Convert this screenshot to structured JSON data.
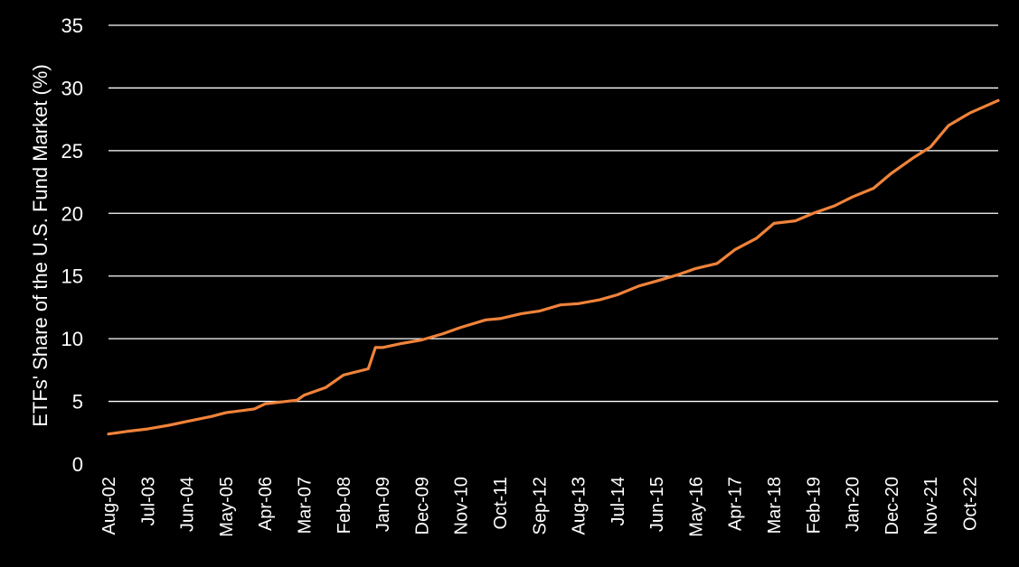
{
  "chart_data": {
    "type": "line",
    "title": "",
    "xlabel": "",
    "ylabel": "ETFs' Share of the U.S.  Fund Market (%)",
    "ylim": [
      0,
      35
    ],
    "yticks": [
      0,
      5,
      10,
      15,
      20,
      25,
      30,
      35
    ],
    "xticks": [
      "Aug-02",
      "Jul-03",
      "Jun-04",
      "May-05",
      "Apr-06",
      "Mar-07",
      "Feb-08",
      "Jan-09",
      "Dec-09",
      "Nov-10",
      "Oct-11",
      "Sep-12",
      "Aug-13",
      "Jul-14",
      "Jun-15",
      "May-16",
      "Apr-17",
      "Mar-18",
      "Feb-19",
      "Jan-20",
      "Dec-20",
      "Nov-21",
      "Oct-22"
    ],
    "x_range": [
      "Aug-02",
      "Jun-23"
    ],
    "grid": "horizontal",
    "line_color": "#F0833A",
    "series": [
      {
        "x": [
          "Aug-02",
          "Jan-03",
          "Jul-03",
          "Jan-04",
          "Jun-04",
          "Jan-05",
          "May-05",
          "Jan-06",
          "Apr-06",
          "Jan-07",
          "Mar-07",
          "Sep-07",
          "Feb-08",
          "Sep-08",
          "Nov-08",
          "Jan-09",
          "Jun-09",
          "Dec-09",
          "Jun-10",
          "Nov-10",
          "Jun-11",
          "Oct-11",
          "Apr-12",
          "Sep-12",
          "Mar-13",
          "Aug-13",
          "Feb-14",
          "Jul-14",
          "Jan-15",
          "Jun-15",
          "Dec-15",
          "May-16",
          "Nov-16",
          "Apr-17",
          "Oct-17",
          "Mar-18",
          "Sep-18",
          "Feb-19",
          "Aug-19",
          "Jan-20",
          "Jul-20",
          "Dec-20",
          "Jun-21",
          "Nov-21",
          "Apr-22",
          "Oct-22",
          "Jun-23"
        ],
        "values": [
          2.4,
          2.6,
          2.8,
          3.1,
          3.4,
          3.8,
          4.1,
          4.4,
          4.8,
          5.1,
          5.5,
          6.1,
          7.1,
          7.6,
          9.3,
          9.3,
          9.6,
          9.9,
          10.4,
          10.9,
          11.5,
          11.6,
          12.0,
          12.2,
          12.7,
          12.8,
          13.1,
          13.5,
          14.2,
          14.6,
          15.1,
          15.6,
          16.0,
          17.1,
          18.0,
          19.2,
          19.4,
          20.0,
          20.6,
          21.3,
          22.0,
          23.2,
          24.4,
          25.3,
          27.0,
          28.0,
          29.0
        ]
      }
    ]
  }
}
